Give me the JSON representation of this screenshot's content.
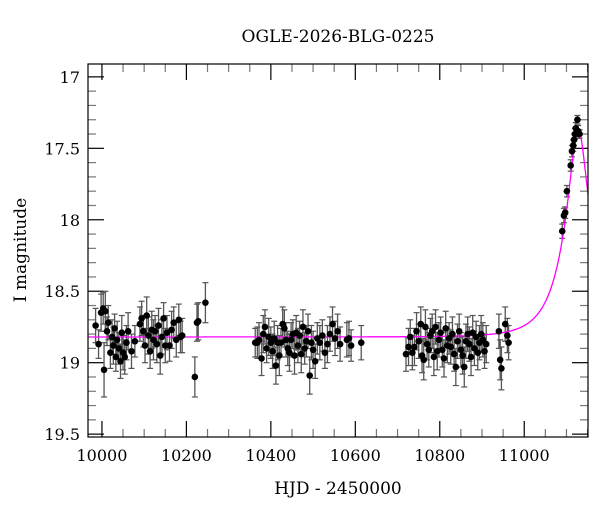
{
  "chart_data": {
    "type": "scatter",
    "title": "OGLE-2026-BLG-0225",
    "xlabel": "HJD - 2450000",
    "ylabel": "I magnitude",
    "xlim": [
      9967,
      11151
    ],
    "ylim": [
      19.52,
      16.91
    ],
    "y_inverted": true,
    "grid": false,
    "x_ticks": [
      10000,
      10200,
      10400,
      10600,
      10800,
      11000
    ],
    "x_tick_labels": [
      "10000",
      "10200",
      "10400",
      "10600",
      "10800",
      "11000"
    ],
    "y_ticks": [
      17,
      17.5,
      18,
      18.5,
      19,
      19.5
    ],
    "y_tick_labels": [
      "17",
      "17.5",
      "18",
      "18.5",
      "19",
      "19.5"
    ],
    "colors": {
      "points": "#000000",
      "errorbars": "#555555",
      "model": "#ff00ff"
    },
    "points_columns": [
      "hjd",
      "mag",
      "err"
    ],
    "points": [
      [
        9985,
        18.74,
        0.12
      ],
      [
        9992,
        18.87,
        0.1
      ],
      [
        9998,
        18.65,
        0.13
      ],
      [
        10003,
        18.62,
        0.11
      ],
      [
        10005,
        19.05,
        0.19
      ],
      [
        10008,
        18.64,
        0.14
      ],
      [
        10012,
        18.78,
        0.1
      ],
      [
        10015,
        18.72,
        0.12
      ],
      [
        10020,
        18.93,
        0.11
      ],
      [
        10024,
        18.82,
        0.12
      ],
      [
        10027,
        18.88,
        0.13
      ],
      [
        10030,
        18.76,
        0.1
      ],
      [
        10033,
        18.96,
        0.1
      ],
      [
        10036,
        18.84,
        0.13
      ],
      [
        10040,
        18.9,
        0.11
      ],
      [
        10044,
        18.99,
        0.12
      ],
      [
        10047,
        18.79,
        0.12
      ],
      [
        10050,
        18.93,
        0.12
      ],
      [
        10054,
        18.96,
        0.12
      ],
      [
        10058,
        18.86,
        0.12
      ],
      [
        10062,
        18.78,
        0.13
      ],
      [
        10070,
        18.92,
        0.12
      ],
      [
        10078,
        18.85,
        0.11
      ],
      [
        10090,
        18.73,
        0.12
      ],
      [
        10094,
        18.69,
        0.12
      ],
      [
        10098,
        18.78,
        0.11
      ],
      [
        10102,
        18.88,
        0.12
      ],
      [
        10106,
        18.67,
        0.13
      ],
      [
        10110,
        18.81,
        0.13
      ],
      [
        10114,
        18.92,
        0.12
      ],
      [
        10118,
        18.77,
        0.13
      ],
      [
        10122,
        18.84,
        0.14
      ],
      [
        10126,
        18.78,
        0.11
      ],
      [
        10130,
        18.87,
        0.13
      ],
      [
        10134,
        18.74,
        0.12
      ],
      [
        10138,
        18.95,
        0.13
      ],
      [
        10142,
        18.82,
        0.12
      ],
      [
        10146,
        18.69,
        0.11
      ],
      [
        10150,
        18.88,
        0.12
      ],
      [
        10154,
        18.79,
        0.12
      ],
      [
        10160,
        18.88,
        0.11
      ],
      [
        10165,
        18.77,
        0.13
      ],
      [
        10170,
        18.72,
        0.11
      ],
      [
        10176,
        18.84,
        0.12
      ],
      [
        10182,
        18.7,
        0.11
      ],
      [
        10186,
        18.82,
        0.11
      ],
      [
        10190,
        18.81,
        0.12
      ],
      [
        10220,
        19.1,
        0.14
      ],
      [
        10225,
        18.72,
        0.13
      ],
      [
        10228,
        18.71,
        0.13
      ],
      [
        10245,
        18.58,
        0.14
      ],
      [
        10363,
        18.86,
        0.1
      ],
      [
        10368,
        18.86,
        0.11
      ],
      [
        10372,
        18.84,
        0.12
      ],
      [
        10378,
        18.97,
        0.12
      ],
      [
        10382,
        18.8,
        0.13
      ],
      [
        10386,
        18.75,
        0.12
      ],
      [
        10390,
        18.9,
        0.1
      ],
      [
        10395,
        18.82,
        0.13
      ],
      [
        10400,
        18.86,
        0.11
      ],
      [
        10404,
        18.92,
        0.12
      ],
      [
        10408,
        18.83,
        0.12
      ],
      [
        10412,
        19.02,
        0.13
      ],
      [
        10416,
        18.86,
        0.12
      ],
      [
        10420,
        18.95,
        0.14
      ],
      [
        10424,
        18.86,
        0.1
      ],
      [
        10428,
        18.73,
        0.12
      ],
      [
        10432,
        18.76,
        0.13
      ],
      [
        10436,
        18.84,
        0.12
      ],
      [
        10440,
        18.9,
        0.12
      ],
      [
        10444,
        18.93,
        0.13
      ],
      [
        10448,
        18.84,
        0.12
      ],
      [
        10452,
        18.8,
        0.1
      ],
      [
        10456,
        18.95,
        0.13
      ],
      [
        10460,
        18.79,
        0.12
      ],
      [
        10464,
        18.88,
        0.12
      ],
      [
        10468,
        18.81,
        0.1
      ],
      [
        10472,
        18.94,
        0.13
      ],
      [
        10476,
        18.75,
        0.12
      ],
      [
        10480,
        18.9,
        0.11
      ],
      [
        10484,
        18.85,
        0.11
      ],
      [
        10488,
        18.78,
        0.12
      ],
      [
        10492,
        19.09,
        0.13
      ],
      [
        10496,
        18.86,
        0.12
      ],
      [
        10500,
        18.91,
        0.13
      ],
      [
        10505,
        18.99,
        0.12
      ],
      [
        10510,
        18.83,
        0.11
      ],
      [
        10516,
        18.86,
        0.12
      ],
      [
        10522,
        18.81,
        0.11
      ],
      [
        10528,
        18.93,
        0.11
      ],
      [
        10534,
        18.87,
        0.13
      ],
      [
        10540,
        18.8,
        0.12
      ],
      [
        10546,
        18.73,
        0.12
      ],
      [
        10552,
        18.83,
        0.12
      ],
      [
        10558,
        18.78,
        0.12
      ],
      [
        10564,
        18.87,
        0.12
      ],
      [
        10580,
        18.84,
        0.12
      ],
      [
        10585,
        18.83,
        0.12
      ],
      [
        10590,
        18.88,
        0.11
      ],
      [
        10614,
        18.86,
        0.12
      ],
      [
        10720,
        18.94,
        0.12
      ],
      [
        10726,
        18.89,
        0.13
      ],
      [
        10730,
        18.82,
        0.12
      ],
      [
        10735,
        18.93,
        0.12
      ],
      [
        10740,
        18.89,
        0.13
      ],
      [
        10745,
        18.78,
        0.13
      ],
      [
        10750,
        18.85,
        0.12
      ],
      [
        10755,
        18.73,
        0.12
      ],
      [
        10758,
        18.95,
        0.12
      ],
      [
        10762,
        18.98,
        0.14
      ],
      [
        10766,
        18.75,
        0.12
      ],
      [
        10770,
        18.87,
        0.11
      ],
      [
        10774,
        18.91,
        0.12
      ],
      [
        10778,
        18.81,
        0.12
      ],
      [
        10782,
        18.78,
        0.12
      ],
      [
        10786,
        18.96,
        0.13
      ],
      [
        10790,
        18.75,
        0.12
      ],
      [
        10794,
        18.92,
        0.13
      ],
      [
        10798,
        18.84,
        0.12
      ],
      [
        10802,
        18.79,
        0.11
      ],
      [
        10806,
        18.91,
        0.12
      ],
      [
        10810,
        18.97,
        0.13
      ],
      [
        10814,
        18.76,
        0.12
      ],
      [
        10818,
        18.88,
        0.12
      ],
      [
        10822,
        18.83,
        0.11
      ],
      [
        10826,
        18.89,
        0.12
      ],
      [
        10830,
        18.8,
        0.12
      ],
      [
        10834,
        18.94,
        0.12
      ],
      [
        10838,
        19.03,
        0.13
      ],
      [
        10842,
        18.85,
        0.12
      ],
      [
        10846,
        18.78,
        0.12
      ],
      [
        10850,
        18.91,
        0.12
      ],
      [
        10854,
        18.95,
        0.13
      ],
      [
        10858,
        19.03,
        0.14
      ],
      [
        10862,
        18.85,
        0.12
      ],
      [
        10866,
        18.8,
        0.12
      ],
      [
        10870,
        18.87,
        0.12
      ],
      [
        10874,
        18.96,
        0.13
      ],
      [
        10878,
        18.79,
        0.12
      ],
      [
        10882,
        18.9,
        0.12
      ],
      [
        10886,
        18.82,
        0.11
      ],
      [
        10890,
        18.93,
        0.12
      ],
      [
        10894,
        18.86,
        0.12
      ],
      [
        10898,
        18.8,
        0.13
      ],
      [
        10902,
        18.84,
        0.12
      ],
      [
        10906,
        18.92,
        0.12
      ],
      [
        10910,
        18.87,
        0.13
      ],
      [
        10940,
        18.78,
        0.12
      ],
      [
        10943,
        18.98,
        0.14
      ],
      [
        10946,
        19.04,
        0.15
      ],
      [
        10955,
        18.73,
        0.12
      ],
      [
        10960,
        18.81,
        0.12
      ],
      [
        10963,
        18.86,
        0.12
      ],
      [
        11090,
        18.08,
        0.05
      ],
      [
        11094,
        17.97,
        0.05
      ],
      [
        11097,
        17.95,
        0.04
      ],
      [
        11101,
        17.8,
        0.04
      ],
      [
        11110,
        17.62,
        0.04
      ],
      [
        11113,
        17.52,
        0.04
      ],
      [
        11116,
        17.48,
        0.04
      ],
      [
        11118,
        17.44,
        0.04
      ],
      [
        11120,
        17.4,
        0.04
      ],
      [
        11122,
        17.36,
        0.04
      ],
      [
        11126,
        17.3,
        0.03
      ],
      [
        11128,
        17.38,
        0.04
      ],
      [
        11131,
        17.4,
        0.03
      ]
    ],
    "model": {
      "type": "point-lens (Paczynski)",
      "baseline_mag": 18.82,
      "t0": 11128,
      "u0": 0.27,
      "tE": 70
    }
  }
}
